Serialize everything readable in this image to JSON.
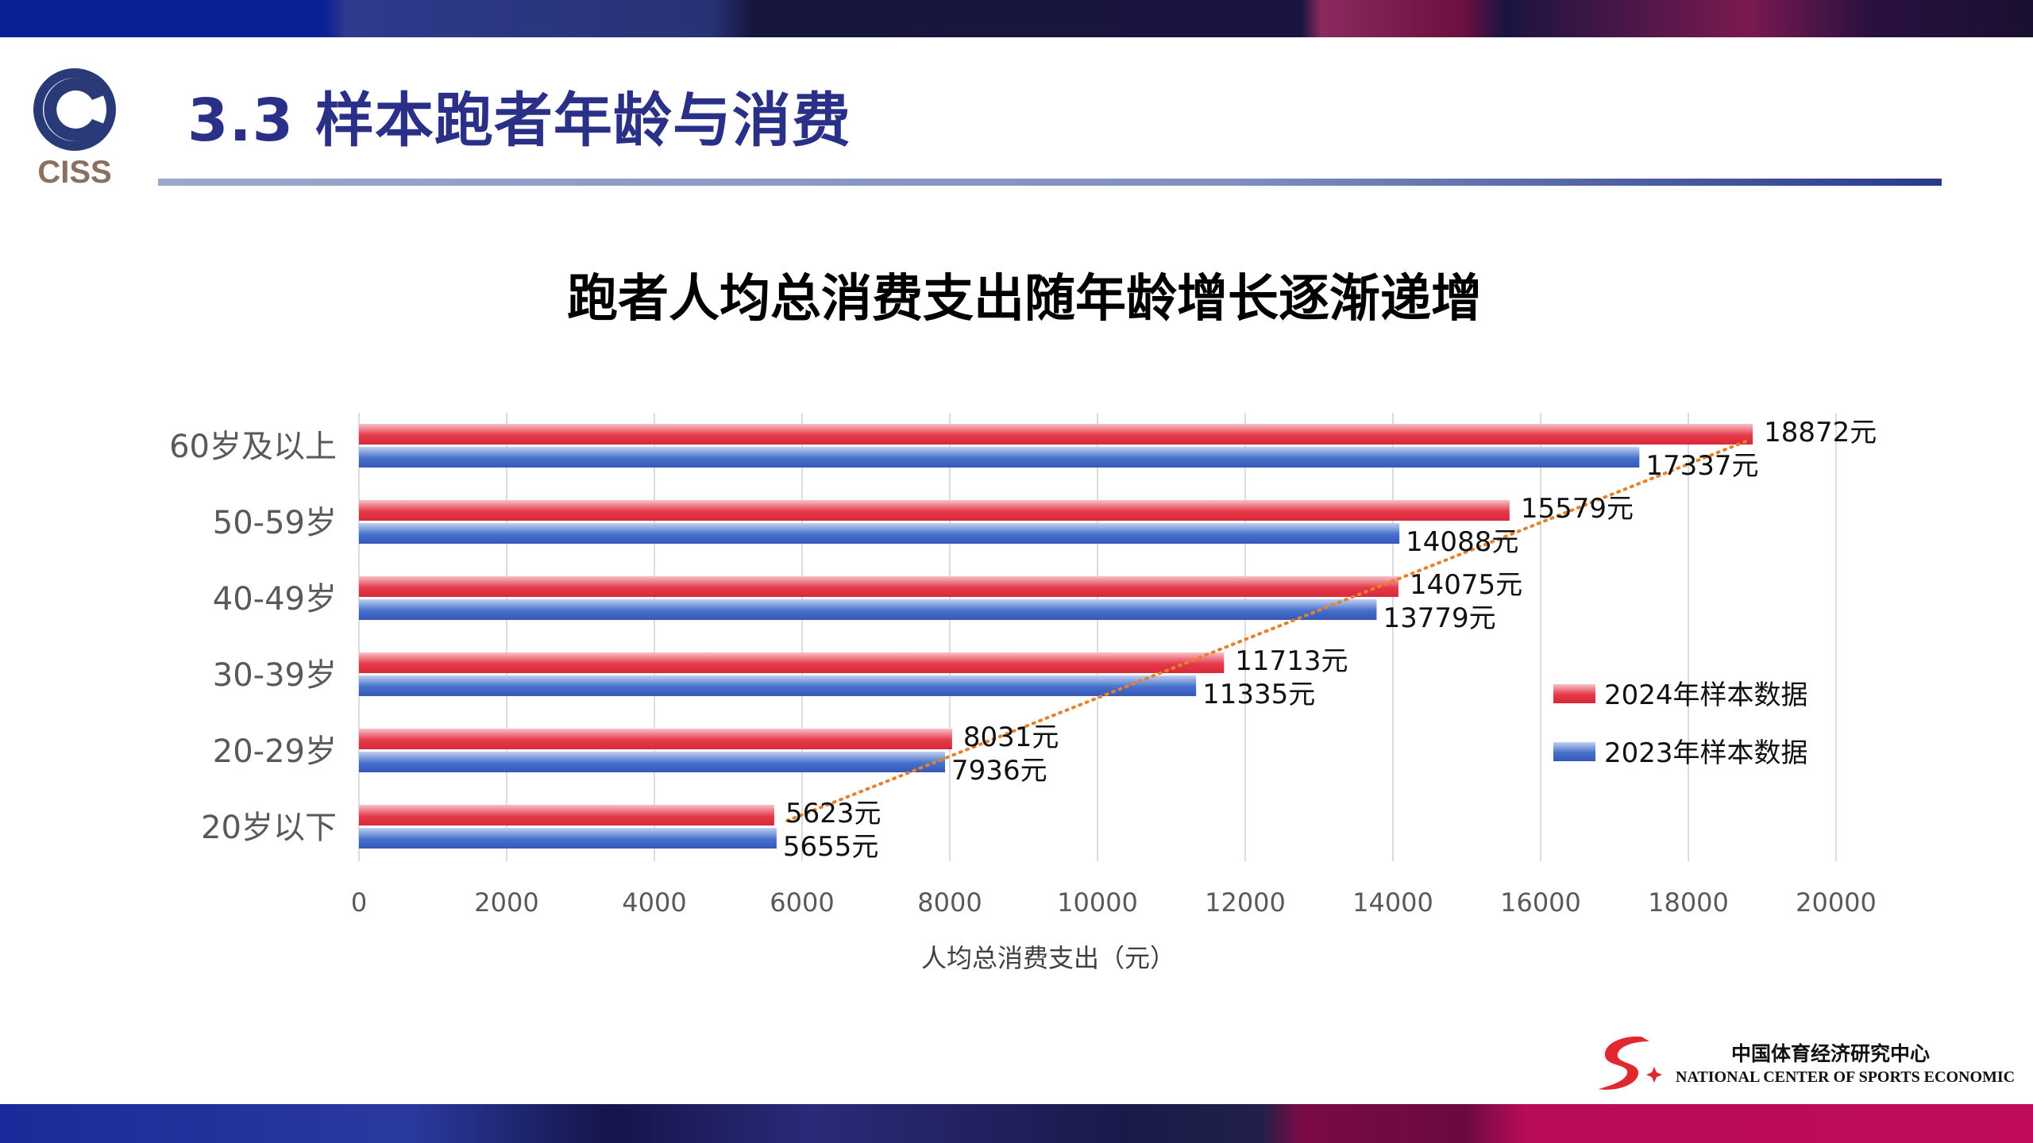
{
  "header": {
    "title": "3.3 样本跑者年龄与消费",
    "logo_text": "CISS"
  },
  "footer": {
    "org_cn": "中国体育经济研究中心",
    "org_en": "NATIONAL CENTER OF SPORTS ECONOMIC"
  },
  "colors": {
    "series_2024": "#e0303e",
    "series_2023": "#3a62c4",
    "trendline": "#e8802a",
    "title": "#2a3088"
  },
  "chart_data": {
    "type": "bar",
    "orientation": "horizontal",
    "title": "跑者人均总消费支出随年龄增长逐渐递增",
    "xlabel": "人均总消费支出（元）",
    "ylabel": "",
    "xlim": [
      0,
      20000
    ],
    "xticks": [
      0,
      2000,
      4000,
      6000,
      8000,
      10000,
      12000,
      14000,
      16000,
      18000,
      20000
    ],
    "grid": true,
    "legend_position": "right",
    "categories": [
      "60岁及以上",
      "50-59岁",
      "40-49岁",
      "30-39岁",
      "20-29岁",
      "20岁以下"
    ],
    "series": [
      {
        "name": "2024年样本数据",
        "values": [
          18872,
          15579,
          14075,
          11713,
          8031,
          5623
        ],
        "labels": [
          "18872元",
          "15579元",
          "14075元",
          "11713元",
          "8031元",
          "5623元"
        ]
      },
      {
        "name": "2023年样本数据",
        "values": [
          17337,
          14088,
          13779,
          11335,
          7936,
          5655
        ],
        "labels": [
          "17337元",
          "14088元",
          "13779元",
          "11335元",
          "7936元",
          "5655元"
        ]
      }
    ],
    "trendline": {
      "series": "2024年样本数据",
      "type": "linear",
      "style": "dotted"
    }
  }
}
